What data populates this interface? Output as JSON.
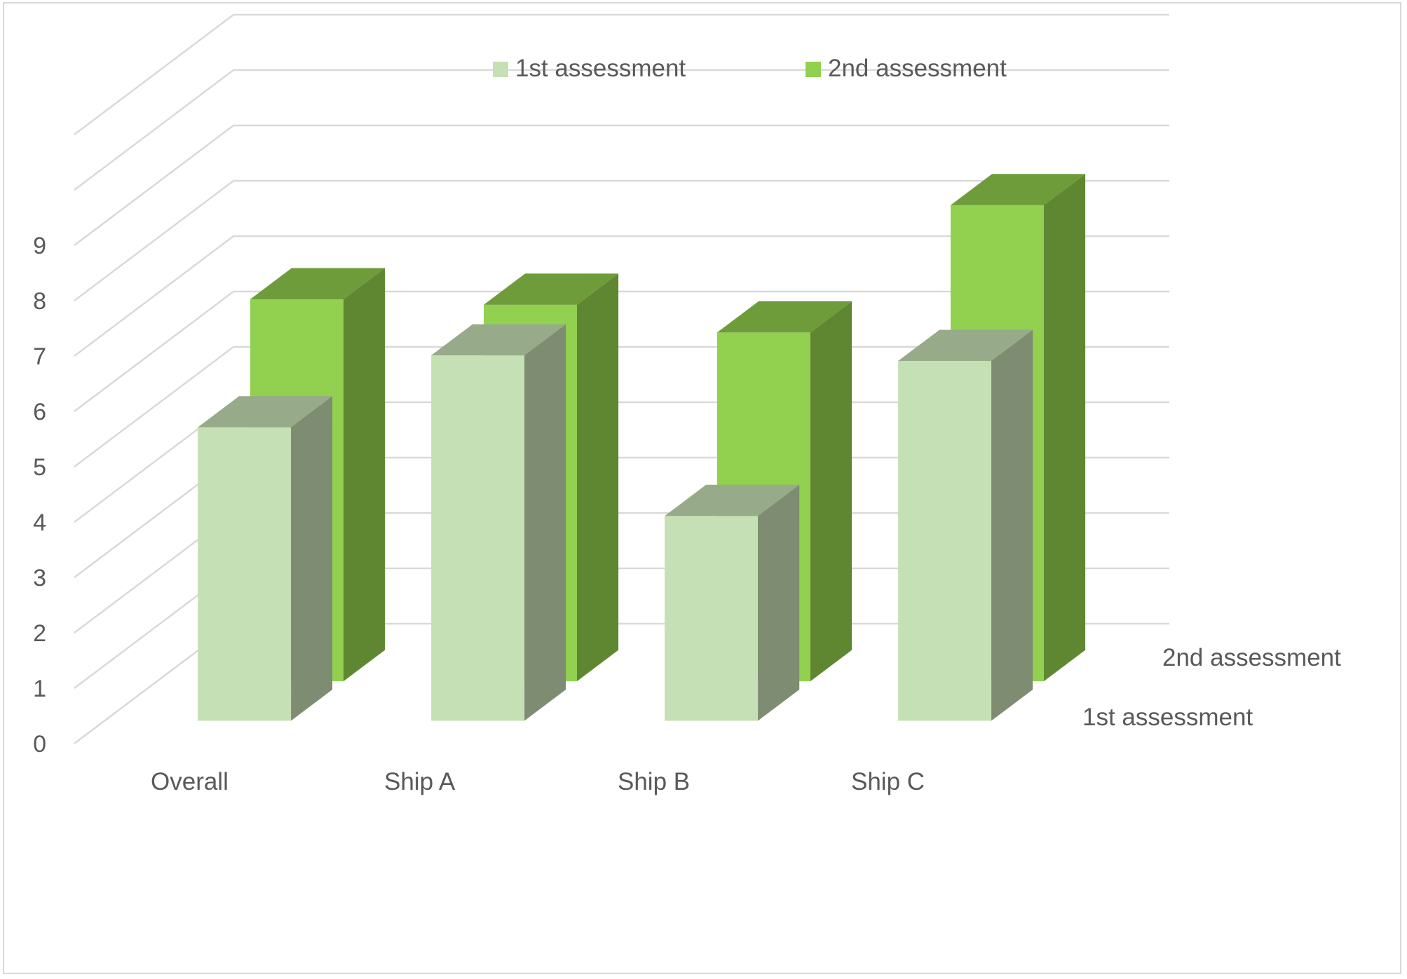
{
  "chart_data": {
    "type": "bar",
    "categories": [
      "Overall",
      "Ship A",
      "Ship B",
      "Ship C"
    ],
    "series": [
      {
        "name": "1st assessment",
        "values": [
          5.3,
          6.6,
          3.7,
          6.5
        ],
        "color": "#c5e0b4",
        "side_color": "#7e8c72",
        "top_color": "#97ab8a"
      },
      {
        "name": "2nd assessment",
        "values": [
          6.9,
          6.8,
          6.3,
          8.6
        ],
        "color": "#92d050",
        "side_color": "#5f8732",
        "top_color": "#6e9c3a"
      }
    ],
    "yticks": [
      0,
      1,
      2,
      3,
      4,
      5,
      6,
      7,
      8,
      9
    ],
    "ylim": [
      0,
      9
    ],
    "depth_labels": [
      "1st assessment",
      "2nd assessment"
    ],
    "legend_position": "top",
    "grid": true,
    "title": "",
    "xlabel": "",
    "ylabel": ""
  }
}
